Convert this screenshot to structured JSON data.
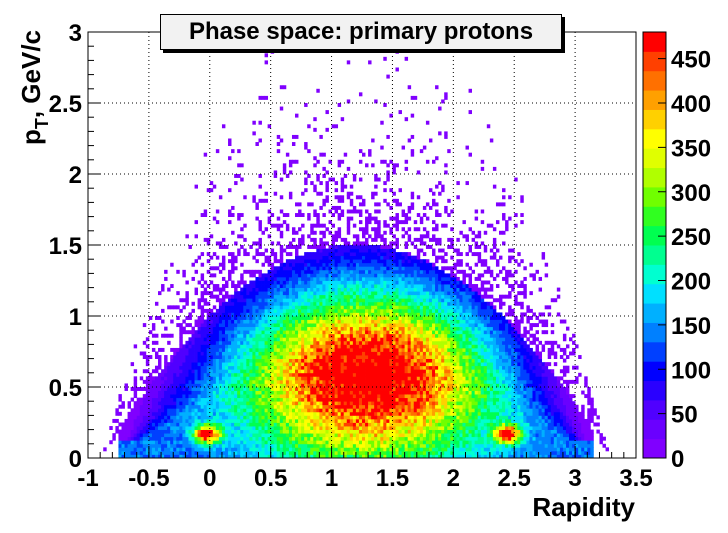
{
  "chart_data": {
    "type": "heatmap",
    "title": "Phase space: primary protons",
    "xlabel": "Rapidity",
    "ylabel": "p",
    "ylabel_sub": "T",
    "ylabel_rest": ", GeV/c",
    "xlim": [
      -1,
      3.5
    ],
    "ylim": [
      0,
      3
    ],
    "x_ticks": [
      "-1",
      "-0.5",
      "0",
      "0.5",
      "1",
      "1.5",
      "2",
      "2.5",
      "3",
      "3.5"
    ],
    "y_ticks": [
      "0",
      "0.5",
      "1",
      "1.5",
      "2",
      "2.5",
      "3"
    ],
    "z_ticks": [
      "0",
      "50",
      "100",
      "150",
      "200",
      "250",
      "300",
      "350",
      "400",
      "450"
    ],
    "zlim": [
      0,
      480
    ],
    "grid": true,
    "colorbar": "right",
    "hot_spots": [
      {
        "x": 1.3,
        "y": 0.6,
        "z": 420
      },
      {
        "x": -0.02,
        "y": 0.17,
        "z": 360
      },
      {
        "x": 2.45,
        "y": 0.17,
        "z": 360
      }
    ],
    "palette": [
      "#8000ff",
      "#6a00ff",
      "#5000ff",
      "#2a00ff",
      "#0000ff",
      "#0040ff",
      "#0080ff",
      "#00b0ff",
      "#00e0ff",
      "#00ffd0",
      "#00ff90",
      "#00ff50",
      "#30ff20",
      "#70ff00",
      "#b0ff00",
      "#e0ff00",
      "#ffff00",
      "#ffd000",
      "#ffa000",
      "#ff7000",
      "#ff4000",
      "#ff0000"
    ]
  }
}
